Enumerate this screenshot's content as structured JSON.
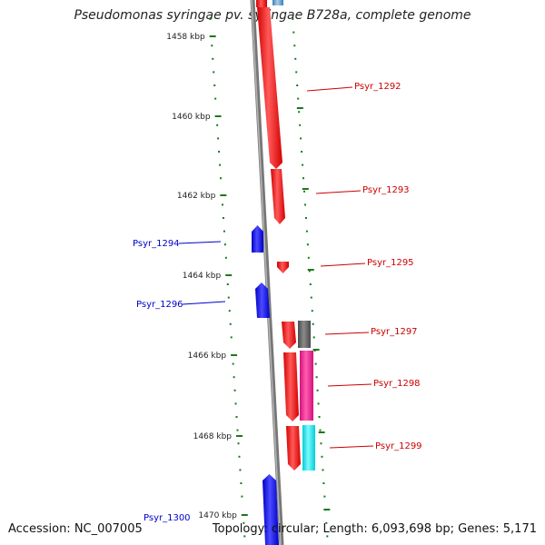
{
  "title": "Pseudomonas syringae pv. syringae B728a, complete genome",
  "footer": {
    "accession": "Accession: NC_007005",
    "summary": "Topology: circular; Length: 6,093,698 bp; Genes: 5,171"
  },
  "colors": {
    "ruler": "#1a7a1a",
    "backbone": "#888888",
    "forward_gene": "#ff1a1a",
    "reverse_gene": "#1a1aff",
    "label_forward": "#cc0000",
    "label_reverse": "#0000cc"
  },
  "ruler_ticks": [
    "1458 kbp",
    "1460 kbp",
    "1462 kbp",
    "1464 kbp",
    "1466 kbp",
    "1468 kbp",
    "1470 kbp"
  ],
  "genes": [
    {
      "label": "Psyr_1292",
      "strand": "forward",
      "color": "#ff1a1a"
    },
    {
      "label": "Psyr_1293",
      "strand": "forward",
      "color": "#ff1a1a"
    },
    {
      "label": "Psyr_1294",
      "strand": "reverse",
      "color": "#1a1aff"
    },
    {
      "label": "Psyr_1295",
      "strand": "forward",
      "color": "#ff1a1a"
    },
    {
      "label": "Psyr_1296",
      "strand": "reverse",
      "color": "#1a1aff"
    },
    {
      "label": "Psyr_1297",
      "strand": "forward",
      "color": "#ff1a1a"
    },
    {
      "label": "Psyr_1298",
      "strand": "forward",
      "color": "#ff1a1a"
    },
    {
      "label": "Psyr_1299",
      "strand": "forward",
      "color": "#ff1a1a"
    },
    {
      "label": "Psyr_1300",
      "strand": "reverse",
      "color": "#1a1aff"
    }
  ]
}
